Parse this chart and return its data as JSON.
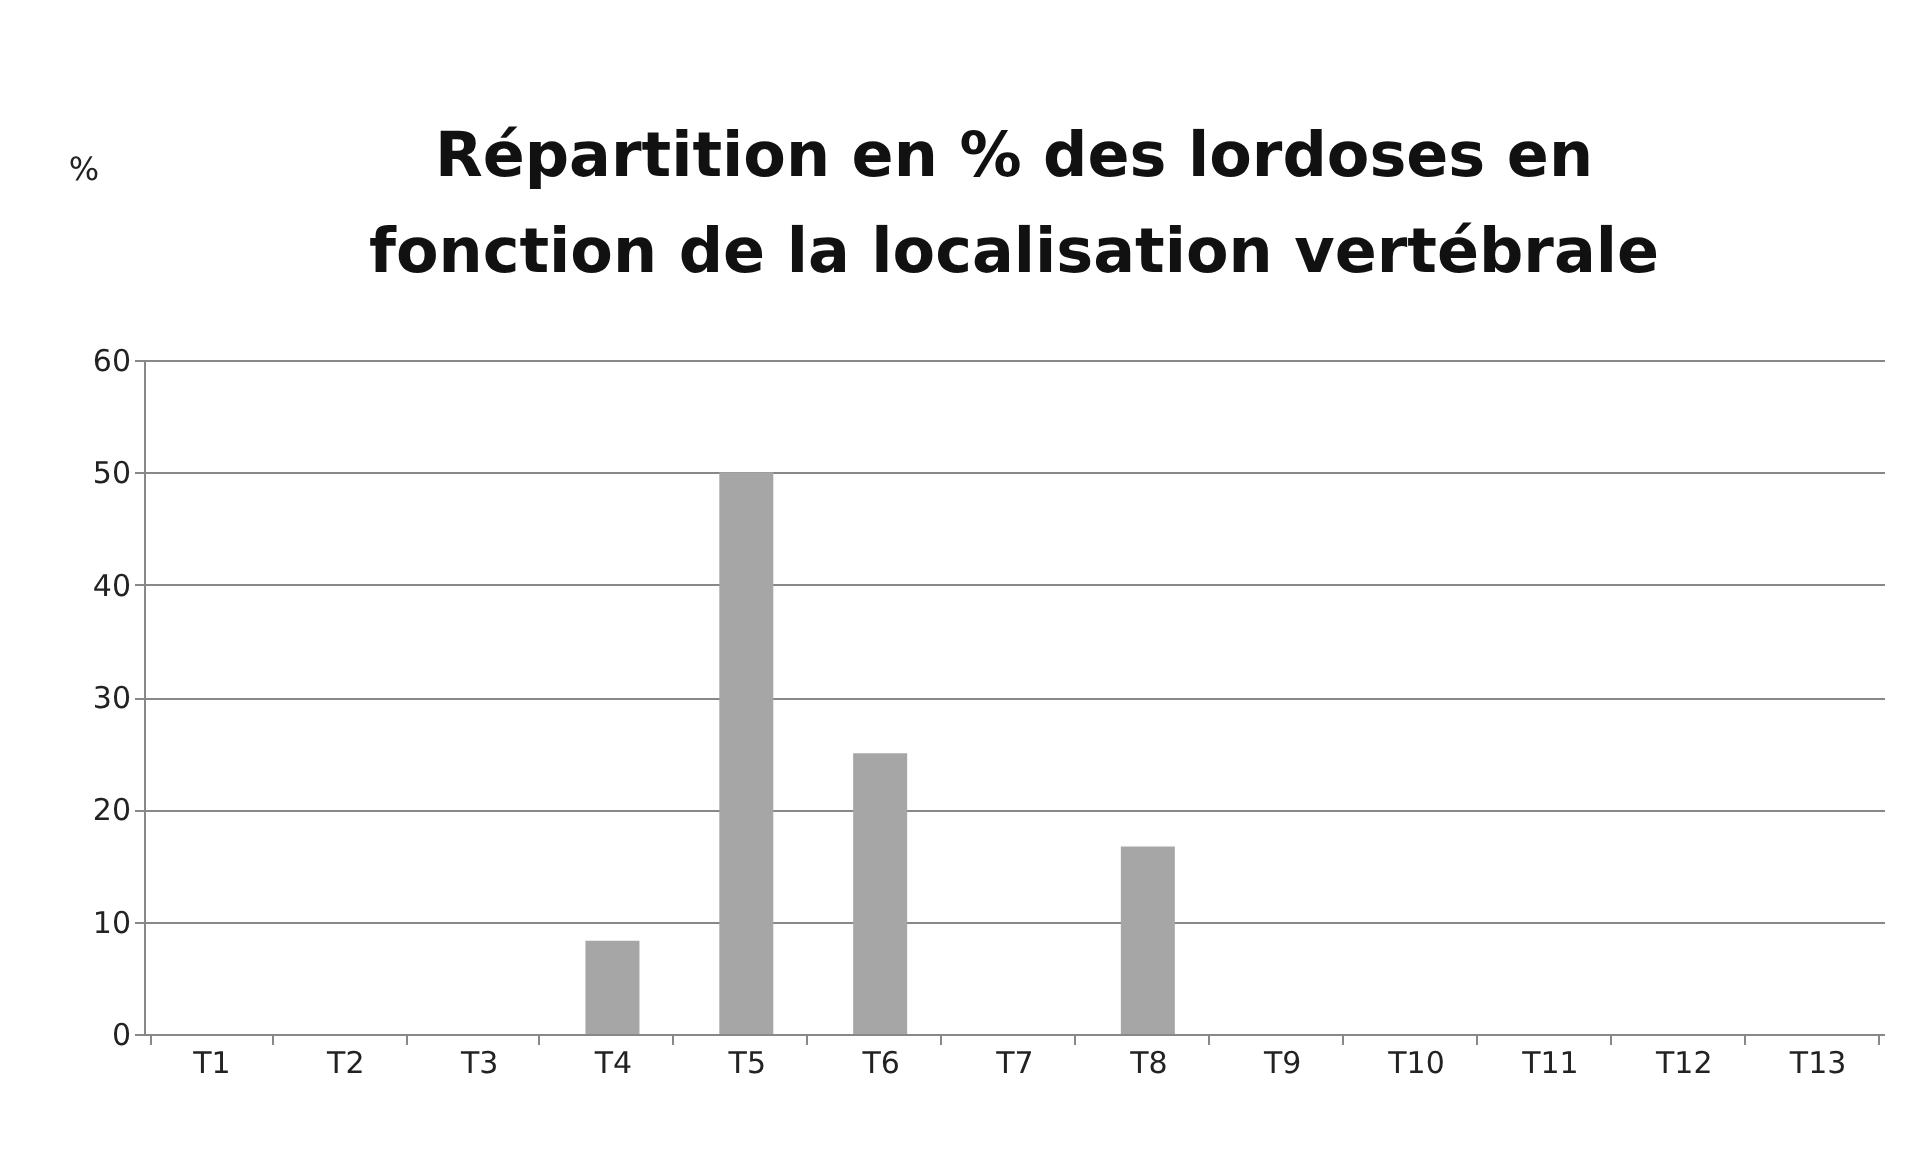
{
  "chart_data": {
    "type": "bar",
    "title": "Répartition en % des lordoses en\nfonction de la localisation vertébrale",
    "annotations": [
      "%"
    ],
    "categories": [
      "T1",
      "T2",
      "T3",
      "T4",
      "T5",
      "T6",
      "T7",
      "T8",
      "T9",
      "T10",
      "T11",
      "T12",
      "T13"
    ],
    "values": [
      0,
      0,
      0,
      8.3,
      50,
      25,
      0,
      16.7,
      0,
      0,
      0,
      0,
      0
    ],
    "color": "#a6a6a6",
    "ylim": [
      0,
      60
    ],
    "yticks": [
      0,
      10,
      20,
      30,
      40,
      50,
      60
    ],
    "grid": "y"
  }
}
